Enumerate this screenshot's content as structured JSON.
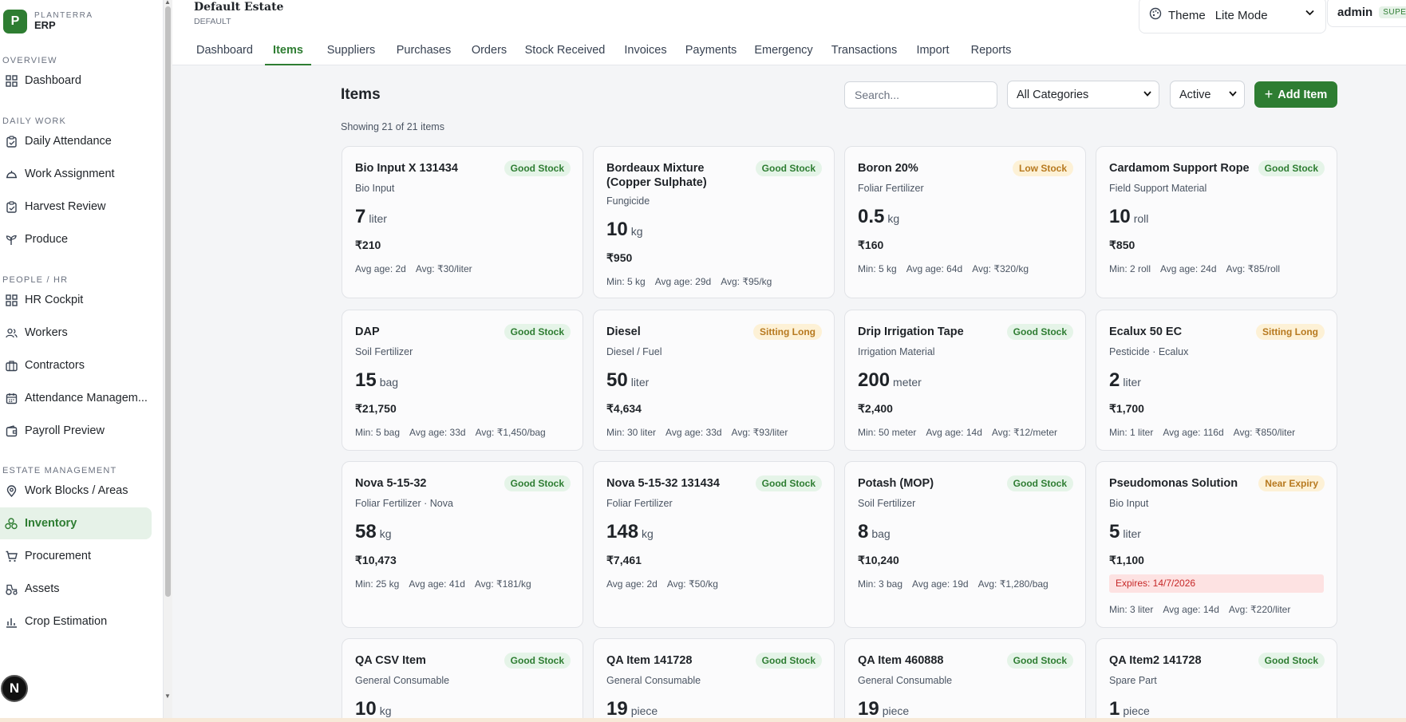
{
  "brand": {
    "name": "PLANTERRA",
    "sub": "ERP",
    "logo_letter": "P"
  },
  "sidebar": {
    "sections": [
      {
        "label": "OVERVIEW",
        "items": [
          {
            "label": "Dashboard",
            "icon": "grid-icon"
          }
        ]
      },
      {
        "label": "DAILY WORK",
        "items": [
          {
            "label": "Daily Attendance",
            "icon": "clipboard-icon"
          },
          {
            "label": "Work Assignment",
            "icon": "helmet-icon"
          },
          {
            "label": "Harvest Review",
            "icon": "clipboard-icon"
          },
          {
            "label": "Produce",
            "icon": "sprout-icon"
          }
        ]
      },
      {
        "label": "PEOPLE / HR",
        "items": [
          {
            "label": "HR Cockpit",
            "icon": "grid-icon"
          },
          {
            "label": "Workers",
            "icon": "users-icon"
          },
          {
            "label": "Contractors",
            "icon": "briefcase-icon"
          },
          {
            "label": "Attendance Managem...",
            "icon": "calendar-icon"
          },
          {
            "label": "Payroll Preview",
            "icon": "wallet-icon"
          }
        ]
      },
      {
        "label": "ESTATE MANAGEMENT",
        "items": [
          {
            "label": "Work Blocks / Areas",
            "icon": "pin-icon"
          },
          {
            "label": "Inventory",
            "icon": "boxes-icon",
            "active": true
          },
          {
            "label": "Procurement",
            "icon": "cart-icon"
          },
          {
            "label": "Assets",
            "icon": "tractor-icon"
          },
          {
            "label": "Crop Estimation",
            "icon": "chart-icon"
          }
        ]
      }
    ]
  },
  "header": {
    "estate_name": "Default Estate",
    "estate_code": "DEFAULT",
    "theme_label": "Theme",
    "theme_value": "Lite Mode",
    "user_name": "admin",
    "user_role": "SUPER"
  },
  "tabs": [
    "Dashboard",
    "Items",
    "Suppliers",
    "Purchases",
    "Orders",
    "Stock Received",
    "Invoices",
    "Payments",
    "Emergency",
    "Transactions",
    "Import",
    "Reports"
  ],
  "active_tab": "Items",
  "main": {
    "title": "Items",
    "count_text": "Showing 21 of 21 items",
    "search_placeholder": "Search...",
    "category_filter": "All Categories",
    "status_filter": "Active",
    "add_label": "Add Item"
  },
  "items": [
    {
      "name": "Bio Input X 131434",
      "status": "Good Stock",
      "category": "Bio Input",
      "qty": "7",
      "unit": "liter",
      "value": "₹210",
      "stats": [
        "Avg age: 2d",
        "Avg: ₹30/liter"
      ]
    },
    {
      "name": "Bordeaux Mixture (Copper Sulphate)",
      "status": "Good Stock",
      "category": "Fungicide",
      "qty": "10",
      "unit": "kg",
      "value": "₹950",
      "stats": [
        "Min: 5 kg",
        "Avg age: 29d",
        "Avg: ₹95/kg"
      ]
    },
    {
      "name": "Boron 20%",
      "status": "Low Stock",
      "category": "Foliar Fertilizer",
      "qty": "0.5",
      "unit": "kg",
      "value": "₹160",
      "stats": [
        "Min: 5 kg",
        "Avg age: 64d",
        "Avg: ₹320/kg"
      ]
    },
    {
      "name": "Cardamom Support Rope",
      "status": "Good Stock",
      "category": "Field Support Material",
      "qty": "10",
      "unit": "roll",
      "value": "₹850",
      "stats": [
        "Min: 2 roll",
        "Avg age: 24d",
        "Avg: ₹85/roll"
      ]
    },
    {
      "name": "DAP",
      "status": "Good Stock",
      "category": "Soil Fertilizer",
      "qty": "15",
      "unit": "bag",
      "value": "₹21,750",
      "stats": [
        "Min: 5 bag",
        "Avg age: 33d",
        "Avg: ₹1,450/bag"
      ]
    },
    {
      "name": "Diesel",
      "status": "Sitting Long",
      "category": "Diesel / Fuel",
      "qty": "50",
      "unit": "liter",
      "value": "₹4,634",
      "stats": [
        "Min: 30 liter",
        "Avg age: 33d",
        "Avg: ₹93/liter"
      ]
    },
    {
      "name": "Drip Irrigation Tape",
      "status": "Good Stock",
      "category": "Irrigation Material",
      "qty": "200",
      "unit": "meter",
      "value": "₹2,400",
      "stats": [
        "Min: 50 meter",
        "Avg age: 14d",
        "Avg: ₹12/meter"
      ]
    },
    {
      "name": "Ecalux 50 EC",
      "status": "Sitting Long",
      "category": "Pesticide · Ecalux",
      "qty": "2",
      "unit": "liter",
      "value": "₹1,700",
      "stats": [
        "Min: 1 liter",
        "Avg age: 116d",
        "Avg: ₹850/liter"
      ]
    },
    {
      "name": "Nova 5-15-32",
      "status": "Good Stock",
      "category": "Foliar Fertilizer · Nova",
      "qty": "58",
      "unit": "kg",
      "value": "₹10,473",
      "stats": [
        "Min: 25 kg",
        "Avg age: 41d",
        "Avg: ₹181/kg"
      ]
    },
    {
      "name": "Nova 5-15-32 131434",
      "status": "Good Stock",
      "category": "Foliar Fertilizer",
      "qty": "148",
      "unit": "kg",
      "value": "₹7,461",
      "stats": [
        "Avg age: 2d",
        "Avg: ₹50/kg"
      ]
    },
    {
      "name": "Potash (MOP)",
      "status": "Good Stock",
      "category": "Soil Fertilizer",
      "qty": "8",
      "unit": "bag",
      "value": "₹10,240",
      "stats": [
        "Min: 3 bag",
        "Avg age: 19d",
        "Avg: ₹1,280/bag"
      ]
    },
    {
      "name": "Pseudomonas Solution",
      "status": "Near Expiry",
      "category": "Bio Input",
      "qty": "5",
      "unit": "liter",
      "value": "₹1,100",
      "expiry": "Expires: 14/7/2026",
      "stats": [
        "Min: 3 liter",
        "Avg age: 14d",
        "Avg: ₹220/liter"
      ]
    },
    {
      "name": "QA CSV Item",
      "status": "Good Stock",
      "category": "General Consumable",
      "qty": "10",
      "unit": "kg",
      "value": "",
      "stats": []
    },
    {
      "name": "QA Item 141728",
      "status": "Good Stock",
      "category": "General Consumable",
      "qty": "19",
      "unit": "piece",
      "value": "",
      "stats": []
    },
    {
      "name": "QA Item 460888",
      "status": "Good Stock",
      "category": "General Consumable",
      "qty": "19",
      "unit": "piece",
      "value": "",
      "stats": []
    },
    {
      "name": "QA Item2 141728",
      "status": "Good Stock",
      "category": "Spare Part",
      "qty": "1",
      "unit": "piece",
      "value": "",
      "stats": []
    }
  ],
  "floating_badge": "N",
  "colors": {
    "accent": "#2e7d32",
    "good": "#e5f4e8",
    "warn": "#fdf1d6",
    "danger": "#fde2e2"
  }
}
